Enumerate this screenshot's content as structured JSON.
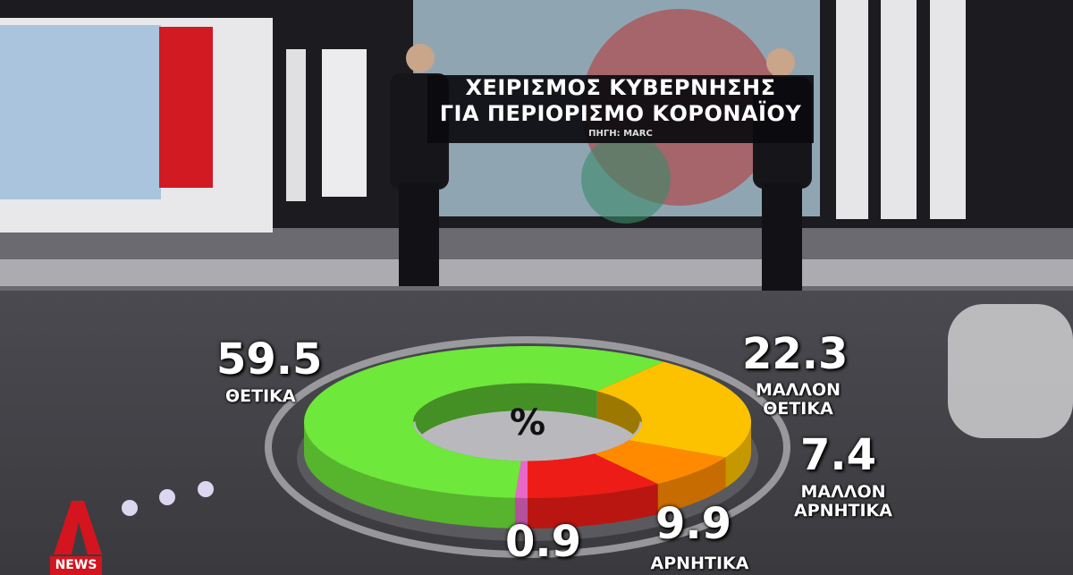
{
  "banner": {
    "title_line1": "ΧΕΙΡΙΣΜΟΣ ΚΥΒΕΡΝΗΣΗΣ",
    "title_line2": "ΓΙΑ ΠΕΡΙΟΡΙΣΜΟ ΚΟΡΟΝΑΪΟΥ",
    "source": "ΠΗΓΗ: MARC"
  },
  "logo": {
    "letter": "Α",
    "label": "NEWS",
    "color": "#d4141e"
  },
  "chart_data": {
    "type": "pie",
    "style": "3d-donut",
    "center_label": "%",
    "start": "bottom",
    "direction": "clockwise",
    "slices": [
      {
        "value": 0.9,
        "label": "",
        "color": "#e868c8"
      },
      {
        "value": 59.5,
        "label": "ΘΕΤΙΚΑ",
        "color": "#6ee83a"
      },
      {
        "value": 22.3,
        "label": "ΜΑΛΛΟΝ ΘΕΤΙΚΑ",
        "color": "#fcc200"
      },
      {
        "value": 7.4,
        "label": "ΜΑΛΛΟΝ ΑΡΝΗΤΙΚΑ",
        "color": "#ff8a00"
      },
      {
        "value": 9.9,
        "label": "ΑΡΝΗΤΙΚΑ",
        "color": "#ee1c16"
      }
    ]
  },
  "labels": {
    "v0": "0.9",
    "v1": "59.5",
    "l1": "ΘΕΤΙΚΑ",
    "v2": "22.3",
    "l2a": "ΜΑΛΛΟΝ",
    "l2b": "ΘΕΤΙΚΑ",
    "v3": "7.4",
    "l3a": "ΜΑΛΛΟΝ",
    "l3b": "ΑΡΝΗΤΙΚΑ",
    "v4": "9.9",
    "l4": "ΑΡΝΗΤΙΚΑ"
  }
}
